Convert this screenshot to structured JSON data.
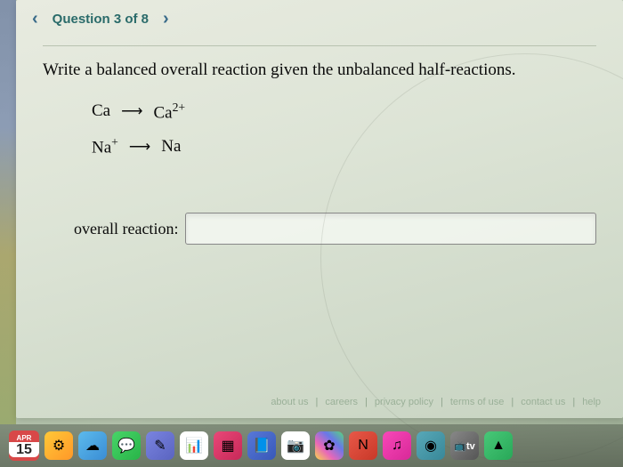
{
  "nav": {
    "prev_arrow": "‹",
    "next_arrow": "›",
    "counter": "Question 3 of 8"
  },
  "prompt": "Write a balanced overall reaction given the unbalanced half-reactions.",
  "equations": {
    "eq1_left": "Ca",
    "eq1_right_base": "Ca",
    "eq1_right_sup": "2+",
    "eq2_left_base": "Na",
    "eq2_left_sup": "+",
    "eq2_right": "Na",
    "arrow": "⟶"
  },
  "answer": {
    "label": "overall reaction:",
    "value": ""
  },
  "footer": {
    "about": "about us",
    "careers": "careers",
    "privacy": "privacy policy",
    "terms": "terms of use",
    "contact": "contact us",
    "help": "help"
  },
  "date": {
    "month": "APR",
    "day": "15"
  },
  "dock": {
    "tv_label": "📺tv"
  }
}
